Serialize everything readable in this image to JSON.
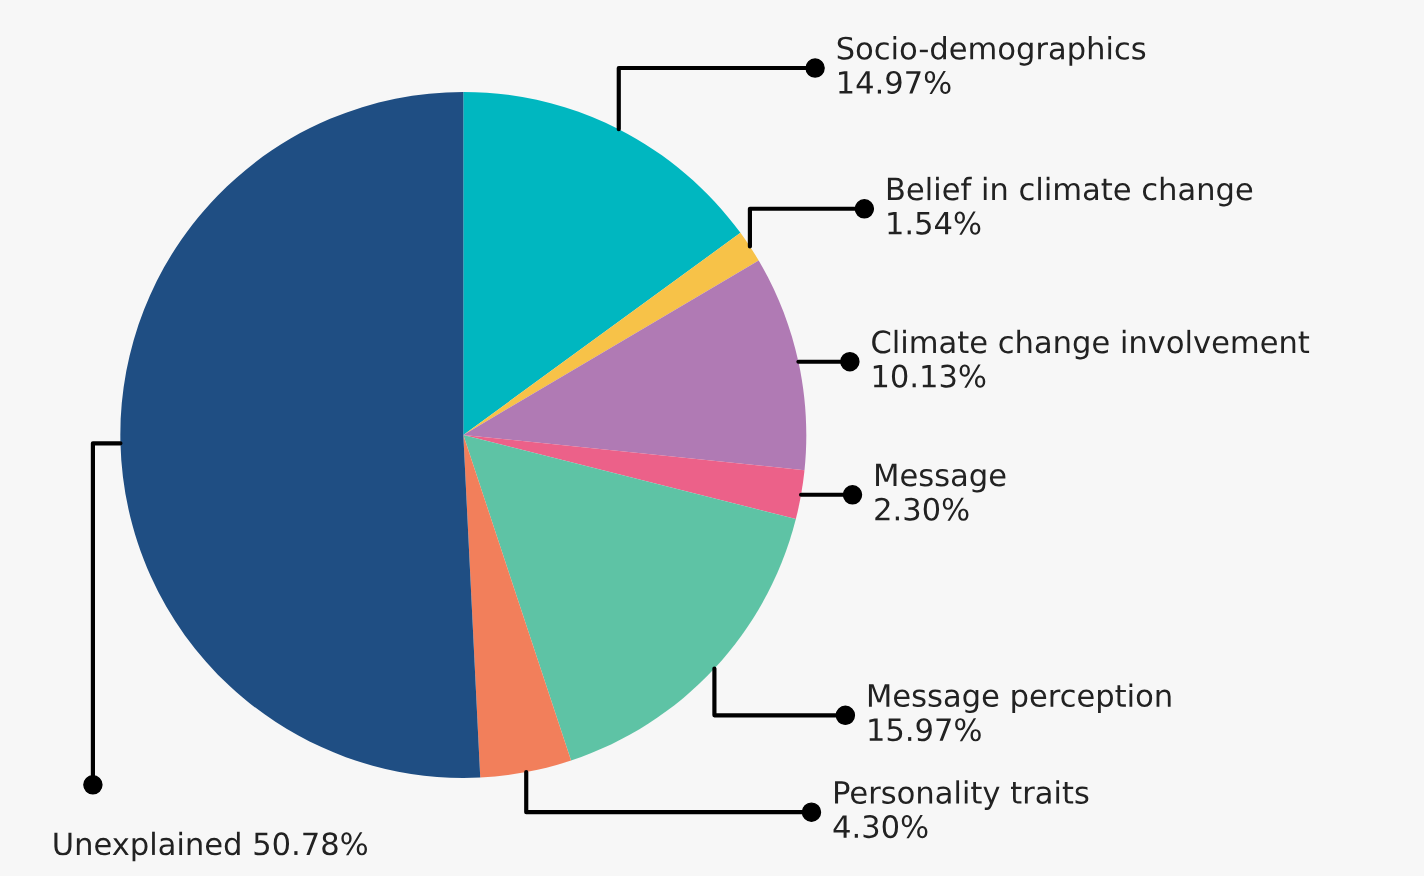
{
  "chart_data": {
    "type": "pie",
    "categories": [
      "Socio-demographics",
      "Belief in climate change",
      "Climate change involvement",
      "Message",
      "Message perception",
      "Personality traits",
      "Unexplained"
    ],
    "values": [
      14.97,
      1.54,
      10.13,
      2.3,
      15.97,
      4.3,
      50.78
    ],
    "value_labels": [
      "14.97%",
      "1.54%",
      "10.13%",
      "2.30%",
      "15.97%",
      "4.30%",
      "50.78%"
    ],
    "colors": [
      "#00b7c0",
      "#f7c248",
      "#b07ab4",
      "#ec6189",
      "#5ec3a5",
      "#f27f5b",
      "#1f4e83"
    ],
    "legend": false
  }
}
